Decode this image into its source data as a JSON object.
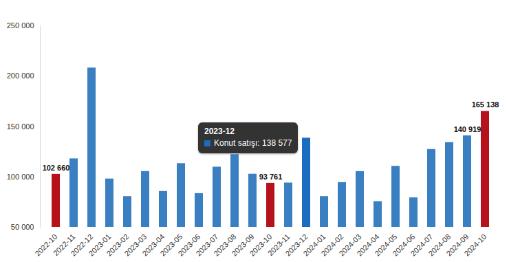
{
  "chart_data": {
    "type": "bar",
    "categories": [
      "2022-10",
      "2022-11",
      "2022-12",
      "2023-01",
      "2023-02",
      "2023-03",
      "2023-04",
      "2023-05",
      "2023-06",
      "2023-07",
      "2023-08",
      "2023-09",
      "2023-10",
      "2023-11",
      "2023-12",
      "2024-01",
      "2024-02",
      "2024-03",
      "2024-04",
      "2024-05",
      "2024-06",
      "2024-07",
      "2024-08",
      "2024-09",
      "2024-10"
    ],
    "values": [
      102660,
      118011,
      208157,
      98027,
      80565,
      105476,
      85652,
      113276,
      83530,
      109766,
      122151,
      102769,
      93761,
      94021,
      138577,
      80581,
      94431,
      105394,
      75569,
      110588,
      79313,
      127321,
      134163,
      140919,
      165138
    ],
    "value_labels": [
      "102 660",
      null,
      null,
      null,
      null,
      null,
      null,
      null,
      null,
      null,
      null,
      null,
      "93 761",
      null,
      null,
      null,
      null,
      null,
      null,
      null,
      null,
      null,
      null,
      "140 919",
      "165 138"
    ],
    "colors": [
      "#b5121b",
      "#3a7fc1",
      "#3a7fc1",
      "#3a7fc1",
      "#3a7fc1",
      "#3a7fc1",
      "#3a7fc1",
      "#3a7fc1",
      "#3a7fc1",
      "#3a7fc1",
      "#3a7fc1",
      "#3a7fc1",
      "#b5121b",
      "#3a7fc1",
      "#1b6cc0",
      "#3a7fc1",
      "#3a7fc1",
      "#3a7fc1",
      "#3a7fc1",
      "#3a7fc1",
      "#3a7fc1",
      "#3a7fc1",
      "#3a7fc1",
      "#3a7fc1",
      "#b5121b"
    ],
    "data_labels": true,
    "grid": false,
    "ylim": [
      50000,
      250000
    ],
    "yticks": [
      {
        "value": 50000,
        "label": "50 000"
      },
      {
        "value": 100000,
        "label": "100 000"
      },
      {
        "value": 150000,
        "label": "150 000"
      },
      {
        "value": 200000,
        "label": "200 000"
      },
      {
        "value": 250000,
        "label": "250 000"
      }
    ],
    "annotations": [
      {
        "category": "2023-12",
        "title": "2023-12",
        "text": "Konut satışı: 138 577"
      }
    ]
  }
}
